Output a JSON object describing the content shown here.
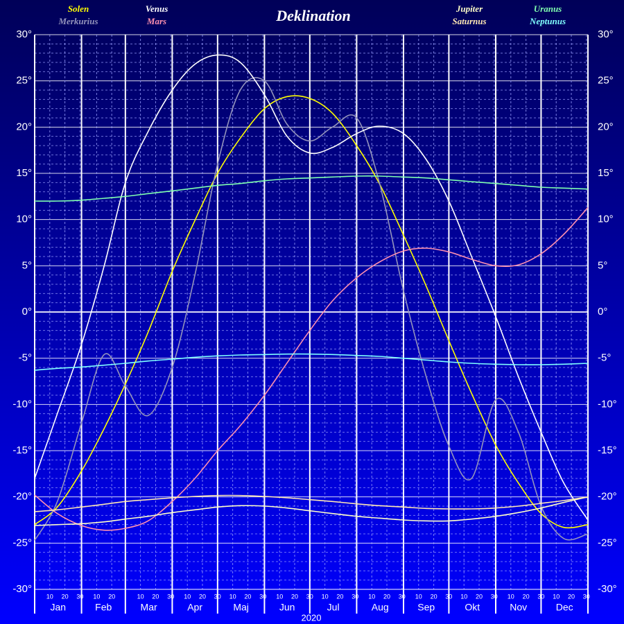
{
  "chart_data": {
    "type": "line",
    "title": "Deklination",
    "xlabel": "2020",
    "x": [
      0,
      15,
      31,
      46,
      60,
      75,
      91,
      106,
      121,
      136,
      152,
      167,
      182,
      197,
      213,
      228,
      244,
      259,
      274,
      289,
      305,
      320,
      335,
      350,
      366
    ],
    "xlim": [
      0,
      366
    ],
    "xticks": [
      {
        "value": 0,
        "label": "Jan"
      },
      {
        "value": 31,
        "label": "Feb"
      },
      {
        "value": 60,
        "label": "Mar"
      },
      {
        "value": 91,
        "label": "Apr"
      },
      {
        "value": 121,
        "label": "Maj"
      },
      {
        "value": 152,
        "label": "Jun"
      },
      {
        "value": 182,
        "label": "Jul"
      },
      {
        "value": 213,
        "label": "Aug"
      },
      {
        "value": 244,
        "label": "Sep"
      },
      {
        "value": 274,
        "label": "Okt"
      },
      {
        "value": 305,
        "label": "Nov"
      },
      {
        "value": 335,
        "label": "Dec"
      }
    ],
    "xminor_ticks": [
      {
        "value": 10,
        "label": "10"
      },
      {
        "value": 20,
        "label": "20"
      },
      {
        "value": 30,
        "label": "30"
      },
      {
        "value": 41,
        "label": "10"
      },
      {
        "value": 51,
        "label": "20"
      },
      {
        "value": 70,
        "label": "10"
      },
      {
        "value": 80,
        "label": "20"
      },
      {
        "value": 90,
        "label": "30"
      },
      {
        "value": 101,
        "label": "10"
      },
      {
        "value": 111,
        "label": "20"
      },
      {
        "value": 121,
        "label": "30"
      },
      {
        "value": 131,
        "label": "10"
      },
      {
        "value": 141,
        "label": "20"
      },
      {
        "value": 151,
        "label": "30"
      },
      {
        "value": 162,
        "label": "10"
      },
      {
        "value": 172,
        "label": "20"
      },
      {
        "value": 182,
        "label": "30"
      },
      {
        "value": 192,
        "label": "10"
      },
      {
        "value": 202,
        "label": "20"
      },
      {
        "value": 212,
        "label": "30"
      },
      {
        "value": 223,
        "label": "10"
      },
      {
        "value": 233,
        "label": "20"
      },
      {
        "value": 243,
        "label": "30"
      },
      {
        "value": 254,
        "label": "10"
      },
      {
        "value": 264,
        "label": "20"
      },
      {
        "value": 274,
        "label": "30"
      },
      {
        "value": 284,
        "label": "10"
      },
      {
        "value": 294,
        "label": "20"
      },
      {
        "value": 304,
        "label": "30"
      },
      {
        "value": 315,
        "label": "10"
      },
      {
        "value": 325,
        "label": "20"
      },
      {
        "value": 335,
        "label": "30"
      },
      {
        "value": 345,
        "label": "10"
      },
      {
        "value": 355,
        "label": "20"
      },
      {
        "value": 365,
        "label": "30"
      }
    ],
    "ylim": [
      -30,
      30
    ],
    "yticks": [
      {
        "value": 30,
        "label": "30°"
      },
      {
        "value": 25,
        "label": "25°"
      },
      {
        "value": 20,
        "label": "20°"
      },
      {
        "value": 15,
        "label": "15°"
      },
      {
        "value": 10,
        "label": "10°"
      },
      {
        "value": 5,
        "label": "5°"
      },
      {
        "value": 0,
        "label": "0°"
      },
      {
        "value": -5,
        "label": "-5°"
      },
      {
        "value": -10,
        "label": "-10°"
      },
      {
        "value": -15,
        "label": "-15°"
      },
      {
        "value": -20,
        "label": "-20°"
      },
      {
        "value": -25,
        "label": "-25°"
      },
      {
        "value": -30,
        "label": "-30°"
      }
    ],
    "grid": true,
    "series": [
      {
        "name": "Solen",
        "color": "#ffff00",
        "values": [
          -23.0,
          -21.1,
          -17.2,
          -12.6,
          -7.8,
          -2.2,
          4.4,
          9.9,
          15.0,
          18.8,
          22.0,
          23.3,
          23.1,
          21.5,
          18.0,
          13.9,
          8.3,
          2.8,
          -3.1,
          -8.8,
          -14.4,
          -18.5,
          -21.8,
          -23.3,
          -23.0
        ]
      },
      {
        "name": "Merkurius",
        "color": "#9494bc",
        "values": [
          -24.7,
          -20.5,
          -12.0,
          -4.6,
          -8.0,
          -11.2,
          -6.0,
          4.0,
          16.0,
          24.0,
          25.0,
          20.3,
          18.5,
          20.0,
          21.0,
          14.0,
          2.3,
          -7.0,
          -14.5,
          -18.0,
          -9.5,
          -13.0,
          -21.0,
          -24.5,
          -24.0
        ]
      },
      {
        "name": "Venus",
        "color": "#ffffff",
        "values": [
          -18.0,
          -11.0,
          -3.5,
          5.0,
          14.0,
          19.5,
          24.0,
          26.8,
          27.8,
          27.0,
          23.5,
          19.0,
          17.2,
          17.8,
          19.3,
          20.1,
          19.3,
          16.5,
          12.0,
          6.0,
          -0.5,
          -7.0,
          -13.0,
          -18.5,
          -22.5
        ]
      },
      {
        "name": "Mars",
        "color": "#ff90b0",
        "values": [
          -19.8,
          -21.8,
          -23.1,
          -23.6,
          -23.4,
          -22.6,
          -20.5,
          -18.0,
          -15.0,
          -12.3,
          -9.0,
          -5.5,
          -2.0,
          1.2,
          3.7,
          5.4,
          6.6,
          6.9,
          6.5,
          5.7,
          5.0,
          5.1,
          6.3,
          8.4,
          11.3
        ]
      },
      {
        "name": "Jupiter",
        "color": "#ffffc8",
        "values": [
          -23.1,
          -23.0,
          -22.9,
          -22.7,
          -22.4,
          -22.1,
          -21.7,
          -21.4,
          -21.1,
          -20.95,
          -21.0,
          -21.2,
          -21.5,
          -21.8,
          -22.1,
          -22.3,
          -22.5,
          -22.6,
          -22.6,
          -22.4,
          -22.1,
          -21.7,
          -21.2,
          -20.6,
          -20.0
        ]
      },
      {
        "name": "Saturnus",
        "color": "#ffe8b4",
        "values": [
          -21.6,
          -21.4,
          -21.1,
          -20.8,
          -20.5,
          -20.3,
          -20.1,
          -19.95,
          -19.85,
          -19.85,
          -19.95,
          -20.1,
          -20.3,
          -20.5,
          -20.75,
          -20.95,
          -21.1,
          -21.25,
          -21.3,
          -21.3,
          -21.2,
          -21.0,
          -20.7,
          -20.4,
          -20.0
        ]
      },
      {
        "name": "Uranus",
        "color": "#80ffb0",
        "values": [
          12.0,
          12.0,
          12.1,
          12.3,
          12.5,
          12.8,
          13.1,
          13.4,
          13.7,
          13.9,
          14.2,
          14.4,
          14.5,
          14.6,
          14.7,
          14.7,
          14.6,
          14.5,
          14.3,
          14.1,
          13.9,
          13.7,
          13.5,
          13.4,
          13.3
        ]
      },
      {
        "name": "Neptunus",
        "color": "#80ffff",
        "values": [
          -6.3,
          -6.1,
          -5.95,
          -5.75,
          -5.55,
          -5.3,
          -5.1,
          -4.9,
          -4.75,
          -4.65,
          -4.6,
          -4.55,
          -4.55,
          -4.6,
          -4.7,
          -4.8,
          -5.0,
          -5.2,
          -5.4,
          -5.55,
          -5.65,
          -5.7,
          -5.7,
          -5.65,
          -5.55
        ]
      }
    ]
  }
}
